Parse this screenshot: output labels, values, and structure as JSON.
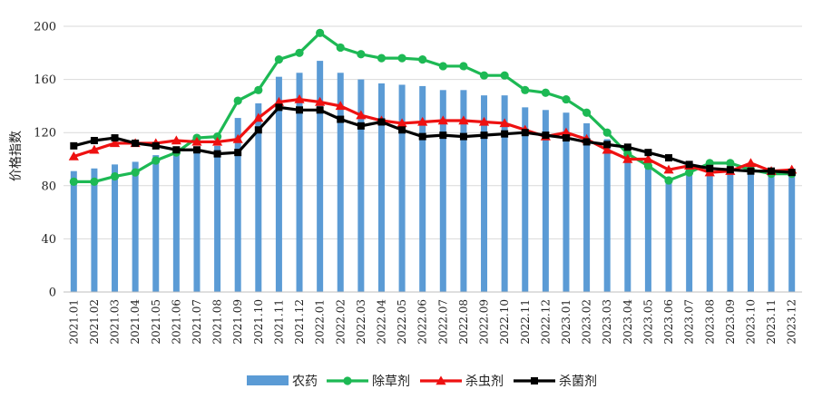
{
  "chart_data": {
    "type": "bar",
    "title": "",
    "xlabel": "",
    "ylabel": "价格指数",
    "ylim": [
      0,
      200
    ],
    "yticks": [
      "0",
      "40",
      "80",
      "120",
      "160",
      "200"
    ],
    "grid": "horizontal",
    "legend_position": "bottom-center",
    "categories": [
      "2021.01",
      "2021.02",
      "2021.03",
      "2021.04",
      "2021.05",
      "2021.06",
      "2021.07",
      "2021.08",
      "2021.09",
      "2021.10",
      "2021.11",
      "2021.12",
      "2022.01",
      "2022.02",
      "2022.03",
      "2022.04",
      "2022.05",
      "2022.06",
      "2022.07",
      "2022.08",
      "2022.09",
      "2022.10",
      "2022.11",
      "2022.12",
      "2023.01",
      "2023.02",
      "2023.03",
      "2023.04",
      "2023.05",
      "2023.06",
      "2023.07",
      "2023.08",
      "2023.09",
      "2023.10",
      "2023.11",
      "2023.12"
    ],
    "series": [
      {
        "name": "农药",
        "kind": "bar",
        "color": "#5b9bd5",
        "values": [
          91,
          93,
          96,
          98,
          103,
          105,
          108,
          110,
          131,
          142,
          162,
          165,
          174,
          165,
          160,
          157,
          156,
          155,
          152,
          152,
          148,
          148,
          139,
          137,
          135,
          127,
          115,
          100,
          97,
          85,
          92,
          90,
          90,
          89,
          88,
          88
        ]
      },
      {
        "name": "除草剂",
        "kind": "line",
        "marker": "circle",
        "color": "#1db954",
        "values": [
          83,
          83,
          87,
          90,
          99,
          105,
          116,
          117,
          144,
          152,
          175,
          180,
          195,
          184,
          179,
          176,
          176,
          175,
          170,
          170,
          163,
          163,
          152,
          150,
          145,
          135,
          120,
          104,
          95,
          84,
          90,
          97,
          97,
          92,
          89,
          89
        ]
      },
      {
        "name": "杀虫剂",
        "kind": "line",
        "marker": "triangle",
        "color": "#ee1111",
        "values": [
          102,
          107,
          112,
          112,
          112,
          114,
          113,
          113,
          115,
          131,
          143,
          145,
          143,
          140,
          133,
          129,
          127,
          128,
          129,
          129,
          128,
          127,
          122,
          117,
          120,
          115,
          107,
          100,
          100,
          92,
          95,
          90,
          91,
          97,
          91,
          92
        ]
      },
      {
        "name": "杀菌剂",
        "kind": "line",
        "marker": "square",
        "color": "#000000",
        "values": [
          110,
          114,
          116,
          112,
          110,
          107,
          107,
          104,
          105,
          122,
          139,
          137,
          137,
          130,
          125,
          128,
          122,
          117,
          118,
          117,
          118,
          119,
          120,
          118,
          116,
          113,
          111,
          109,
          105,
          101,
          96,
          93,
          92,
          91,
          91,
          90
        ]
      }
    ]
  }
}
